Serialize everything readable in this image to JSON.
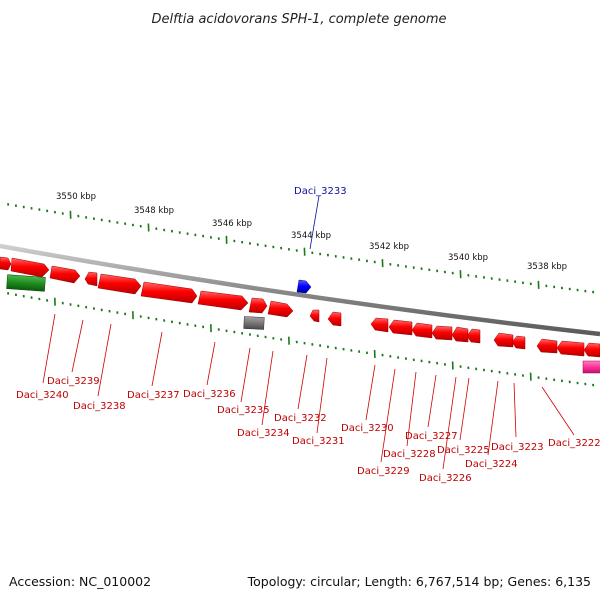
{
  "title": "Delftia acidovorans SPH-1, complete genome",
  "scale_labels": [
    "3550 kbp",
    "3548 kbp",
    "3546 kbp",
    "3544 kbp",
    "3542 kbp",
    "3540 kbp",
    "3538 kbp"
  ],
  "genes": [
    {
      "label": "Daci_3240",
      "color": "red"
    },
    {
      "label": "Daci_3239",
      "color": "red"
    },
    {
      "label": "Daci_3238",
      "color": "red"
    },
    {
      "label": "Daci_3237",
      "color": "red"
    },
    {
      "label": "Daci_3236",
      "color": "red"
    },
    {
      "label": "Daci_3235",
      "color": "red"
    },
    {
      "label": "Daci_3234",
      "color": "red"
    },
    {
      "label": "Daci_3233",
      "color": "blue"
    },
    {
      "label": "Daci_3232",
      "color": "red"
    },
    {
      "label": "Daci_3231",
      "color": "red"
    },
    {
      "label": "Daci_3230",
      "color": "red"
    },
    {
      "label": "Daci_3229",
      "color": "red"
    },
    {
      "label": "Daci_3228",
      "color": "red"
    },
    {
      "label": "Daci_3227",
      "color": "red"
    },
    {
      "label": "Daci_3226",
      "color": "red"
    },
    {
      "label": "Daci_3225",
      "color": "red"
    },
    {
      "label": "Daci_3224",
      "color": "red"
    },
    {
      "label": "Daci_3223",
      "color": "red"
    },
    {
      "label": "Daci_3222",
      "color": "red"
    }
  ],
  "colors": {
    "gene_red": "#ff0000",
    "gene_blue": "#0000ff",
    "rrna_green": "#1e8c1e",
    "pseudo_grey": "#777777",
    "other_pink": "#ff3399",
    "ticks_green": "#1a7a1a",
    "backbone": "#8a8a8a"
  },
  "footer": {
    "accession": "Accession: NC_010002",
    "summary": "Topology: circular; Length: 6,767,514 bp; Genes: 6,135"
  }
}
